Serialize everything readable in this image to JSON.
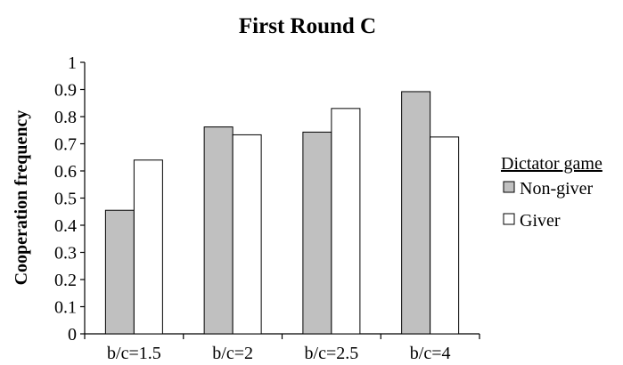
{
  "chart_data": {
    "type": "bar",
    "title": "First Round C",
    "ylabel": "Cooperation frequency",
    "xlabel": "",
    "categories": [
      "b/c=1.5",
      "b/c=2",
      "b/c=2.5",
      "b/c=4"
    ],
    "series": [
      {
        "name": "Non-giver",
        "values": [
          0.455,
          0.762,
          0.743,
          0.892
        ],
        "color": "#c0c0c0"
      },
      {
        "name": "Giver",
        "values": [
          0.64,
          0.733,
          0.83,
          0.725
        ],
        "color": "#ffffff"
      }
    ],
    "ylim": [
      0,
      1
    ],
    "yticks": [
      "0",
      "0.1",
      "0.2",
      "0.3",
      "0.4",
      "0.5",
      "0.6",
      "0.7",
      "0.8",
      "0.9",
      "1"
    ],
    "grid": false,
    "legend": {
      "title": "Dictator game",
      "position": "right"
    }
  }
}
